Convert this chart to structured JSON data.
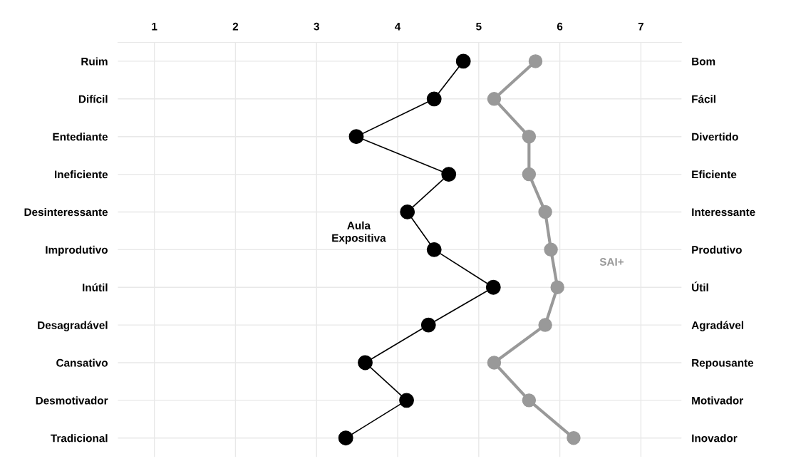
{
  "chart_data": {
    "type": "line",
    "orientation": "horizontal",
    "categories": [
      "Ruim",
      "Difícil",
      "Entediante",
      "Ineficiente",
      "Desinteressante",
      "Improdutivo",
      "Inútil",
      "Desagradável",
      "Cansativo",
      "Desmotivador",
      "Tradicional"
    ],
    "y2_categories": [
      "Bom",
      "Fácil",
      "Divertido",
      "Eficiente",
      "Interessante",
      "Produtivo",
      "Útil",
      "Agradável",
      "Repousante",
      "Motivador",
      "Inovador"
    ],
    "series": [
      {
        "name": "Aula\nExpositiva",
        "color": "#000000",
        "values": [
          4.81,
          4.45,
          3.49,
          4.63,
          4.12,
          4.45,
          5.18,
          4.38,
          3.6,
          4.11,
          3.36
        ]
      },
      {
        "name": "SAI+",
        "color": "#999999",
        "values": [
          5.7,
          5.19,
          5.62,
          5.62,
          5.82,
          5.89,
          5.97,
          5.82,
          5.19,
          5.62,
          6.17
        ]
      }
    ],
    "xlim": [
      0.55,
      7.5
    ],
    "xticks": [
      1,
      2,
      3,
      4,
      5,
      6,
      7
    ],
    "grid": true,
    "marker": "circle",
    "line_style": "solid",
    "legend": false
  }
}
